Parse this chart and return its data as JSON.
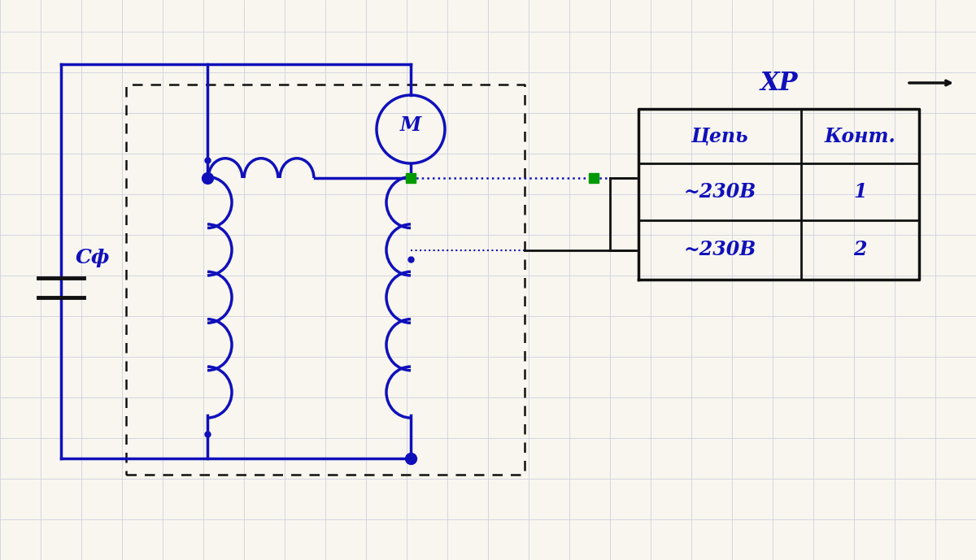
{
  "bg_color": "#f8f6ee",
  "grid_color": "#d0d0e0",
  "line_color": "#1010bb",
  "dark_line_color": "#111111",
  "green_color": "#009900",
  "table_header": "XP",
  "table_col1": "Цепь",
  "table_col2": "Конт.",
  "row1_col1": "~230В",
  "row1_col2": "1",
  "row2_col1": "~230В",
  "row2_col2": "2",
  "label_Cf": "Сф",
  "label_M": "М"
}
